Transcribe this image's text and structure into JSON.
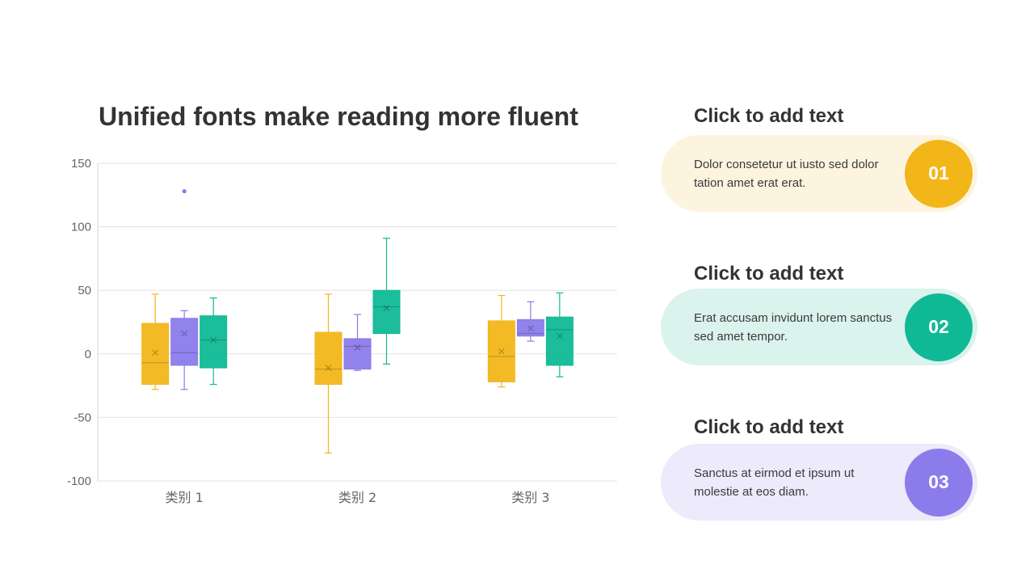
{
  "title": "Unified fonts make reading more fluent",
  "colors": {
    "yellow": "#F2B619",
    "purple": "#8B7BEB",
    "teal": "#10B995",
    "pill_yellow": "#FDF4E0",
    "pill_teal": "#DAF3EC",
    "pill_purple": "#ECEAFB"
  },
  "chart_data": {
    "type": "boxplot",
    "categories": [
      "类别 1",
      "类别 2",
      "类别 3"
    ],
    "y_ticks": [
      "150",
      "100",
      "50",
      "0",
      "-50",
      "-100"
    ],
    "ylim": [
      -100,
      150
    ],
    "grid": true,
    "series": [
      {
        "color": "#F2B619",
        "boxes": [
          {
            "min": -28,
            "q1": -24,
            "median": -7,
            "q3": 24,
            "max": 47,
            "mean": 1
          },
          {
            "min": -78,
            "q1": -24,
            "median": -12,
            "q3": 17,
            "max": 47,
            "mean": -11
          },
          {
            "min": -26,
            "q1": -22,
            "median": -2,
            "q3": 26,
            "max": 46,
            "mean": 2
          }
        ]
      },
      {
        "color": "#8B7BEB",
        "boxes": [
          {
            "min": -28,
            "q1": -9,
            "median": 1,
            "q3": 28,
            "max": 34,
            "mean": 16,
            "outliers": [
              128
            ]
          },
          {
            "min": -13,
            "q1": -12,
            "median": 6,
            "q3": 12,
            "max": 31,
            "mean": 5
          },
          {
            "min": 10,
            "q1": 14,
            "median": 16,
            "q3": 27,
            "max": 41,
            "mean": 20
          }
        ]
      },
      {
        "color": "#10B995",
        "boxes": [
          {
            "min": -24,
            "q1": -11,
            "median": 11,
            "q3": 30,
            "max": 44,
            "mean": 11
          },
          {
            "min": -8,
            "q1": 16,
            "median": 37,
            "q3": 50,
            "max": 91,
            "mean": 36
          },
          {
            "min": -18,
            "q1": -9,
            "median": 19,
            "q3": 29,
            "max": 48,
            "mean": 14
          }
        ]
      }
    ]
  },
  "cards": [
    {
      "heading": "Click to add text",
      "text": "Dolor consetetur ut iusto sed dolor tation amet erat erat.",
      "number": "01"
    },
    {
      "heading": "Click to add text",
      "text": "Erat accusam invidunt lorem sanctus sed amet tempor.",
      "number": "02"
    },
    {
      "heading": "Click to add text",
      "text": "Sanctus at eirmod et ipsum ut molestie at eos diam.",
      "number": "03"
    }
  ]
}
